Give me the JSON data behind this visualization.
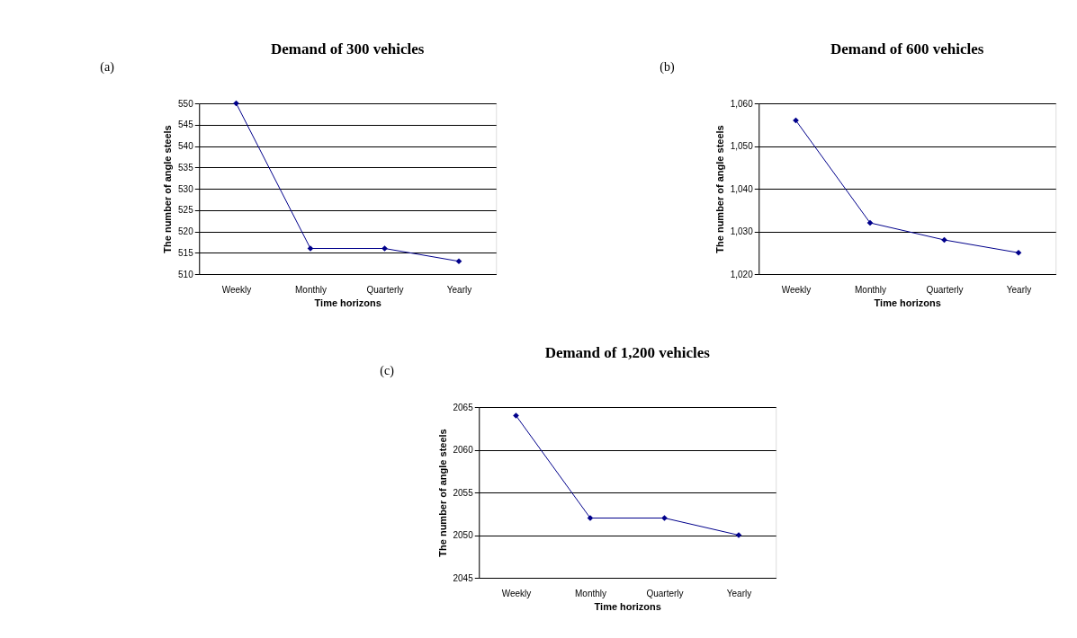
{
  "chart_data": [
    {
      "type": "line",
      "title": "Demand of 300 vehicles",
      "xlabel": "Time horizons",
      "ylabel": "The number of angle steels",
      "annotations": [
        "(a)"
      ],
      "categories": [
        "Weekly",
        "Monthly",
        "Quarterly",
        "Yearly"
      ],
      "series": [
        {
          "color": "#00008b",
          "values": [
            550,
            516,
            516,
            513
          ]
        }
      ],
      "ylim": [
        510,
        550
      ],
      "yticks": [
        510,
        515,
        520,
        525,
        530,
        535,
        540,
        545,
        550
      ],
      "grid": "y",
      "marker": "diamond",
      "line_style": "solid"
    },
    {
      "type": "line",
      "title": "Demand of 600 vehicles",
      "xlabel": "Time horizons",
      "ylabel": "The number of angle steels",
      "annotations": [
        "(b)"
      ],
      "categories": [
        "Weekly",
        "Monthly",
        "Quarterly",
        "Yearly"
      ],
      "series": [
        {
          "color": "#00008b",
          "values": [
            1056,
            1032,
            1028,
            1025
          ]
        }
      ],
      "ylim": [
        1020,
        1060
      ],
      "yticks": [
        {
          "value": 1020,
          "label": "1,020"
        },
        {
          "value": 1030,
          "label": "1,030"
        },
        {
          "value": 1040,
          "label": "1,040"
        },
        {
          "value": 1050,
          "label": "1,050"
        },
        {
          "value": 1060,
          "label": "1,060"
        }
      ],
      "grid": "y",
      "marker": "diamond",
      "line_style": "solid"
    },
    {
      "type": "line",
      "title": "Demand of 1,200 vehicles",
      "xlabel": "Time horizons",
      "ylabel": "The number of angle steels",
      "annotations": [
        "(c)"
      ],
      "categories": [
        "Weekly",
        "Monthly",
        "Quarterly",
        "Yearly"
      ],
      "series": [
        {
          "color": "#00008b",
          "values": [
            2064,
            2052,
            2052,
            2050
          ]
        }
      ],
      "ylim": [
        2045,
        2065
      ],
      "yticks": [
        2045,
        2050,
        2055,
        2060,
        2065
      ],
      "grid": "y",
      "marker": "diamond",
      "line_style": "solid"
    }
  ]
}
